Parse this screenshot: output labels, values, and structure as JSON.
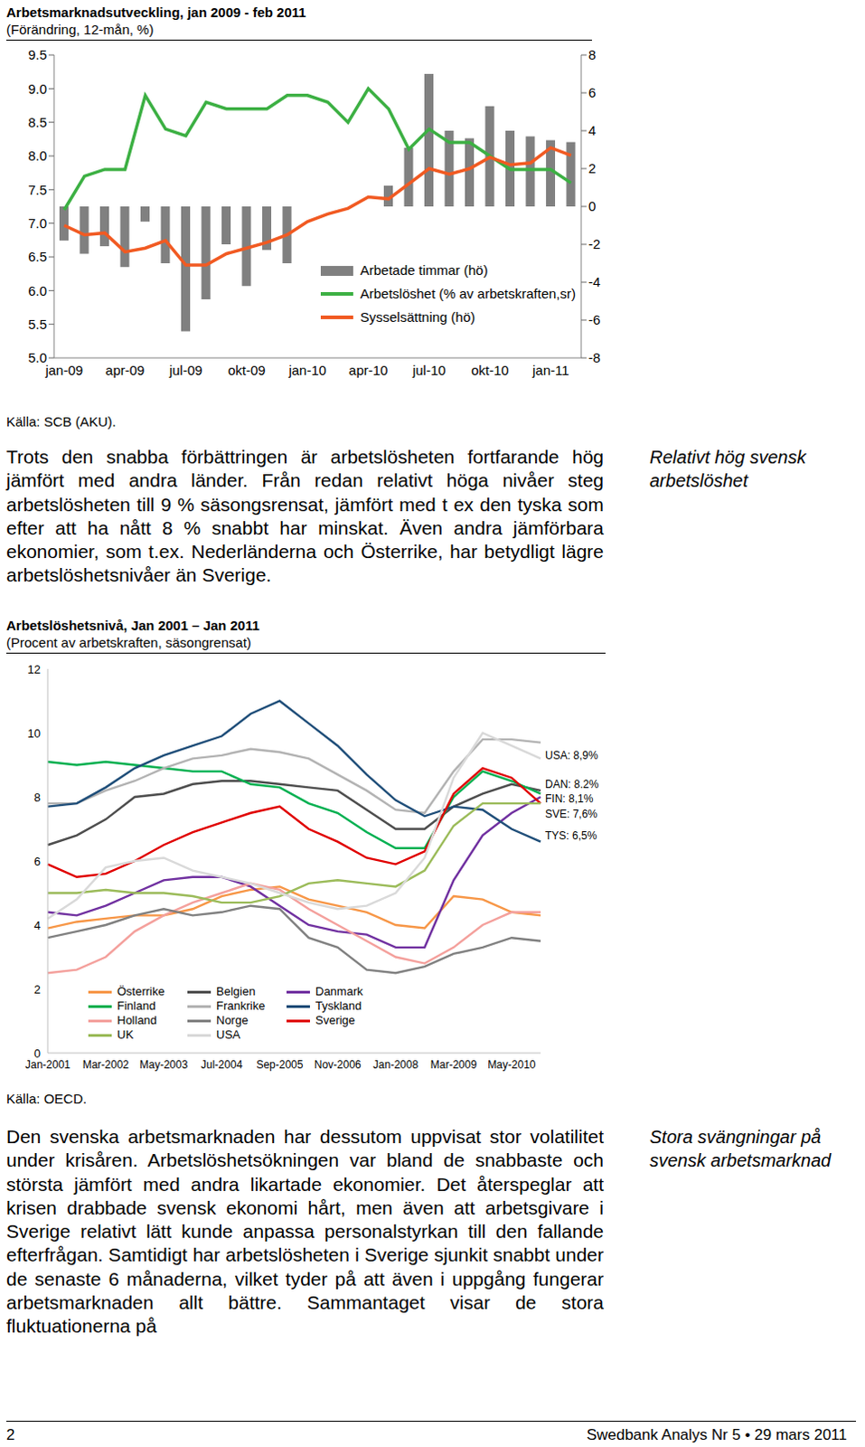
{
  "chart_data": [
    {
      "type": "bar",
      "title": "Arbetsmarknadsutveckling, jan 2009 - feb 2011",
      "subtitle": "(Förändring, 12-mån, %)",
      "source": "Källa: SCB (AKU).",
      "categories": [
        "jan-09",
        null,
        null,
        "apr-09",
        null,
        null,
        "jul-09",
        null,
        null,
        "okt-09",
        null,
        null,
        "jan-10",
        null,
        null,
        "apr-10",
        null,
        null,
        "jul-10",
        null,
        null,
        "okt-10",
        null,
        null,
        "jan-11",
        null
      ],
      "series": [
        {
          "name": "Arbetade timmar (hö)",
          "type": "bar",
          "axis": "y2",
          "color": "#808080",
          "values": [
            -1.8,
            -2.5,
            -2.1,
            -3.2,
            -0.8,
            -3.0,
            -6.6,
            -4.9,
            -2.0,
            -4.2,
            -2.3,
            -3.0,
            null,
            null,
            null,
            null,
            1.1,
            3.1,
            7.0,
            4.0,
            3.6,
            5.3,
            4.0,
            3.7,
            3.5,
            3.4
          ]
        },
        {
          "name": "Arbetslöshet (% av arbetskraften,sr)",
          "type": "line",
          "color": "#3cb043",
          "values": [
            7.2,
            7.7,
            7.8,
            7.8,
            8.9,
            8.4,
            8.3,
            8.8,
            8.7,
            8.7,
            8.7,
            8.9,
            8.9,
            8.8,
            8.5,
            9.0,
            8.7,
            8.1,
            8.4,
            8.2,
            8.2,
            8.0,
            7.8,
            7.8,
            7.8,
            7.6
          ]
        },
        {
          "name": "Sysselsättning (hö)",
          "type": "line",
          "axis": "y2",
          "color": "#f15a22",
          "values": [
            -1.0,
            -1.5,
            -1.4,
            -2.4,
            -2.2,
            -1.8,
            -3.1,
            -3.1,
            -2.5,
            -2.2,
            -1.9,
            -1.5,
            -0.8,
            -0.4,
            -0.1,
            0.5,
            0.4,
            1.2,
            2.0,
            1.7,
            2.0,
            2.6,
            2.2,
            2.3,
            3.1,
            2.7
          ]
        }
      ],
      "ylim": [
        5,
        9.5
      ],
      "yticks": [
        {
          "value": 5,
          "label": "5.0"
        },
        5.5,
        {
          "value": 6,
          "label": "6.0"
        },
        6.5,
        {
          "value": 7,
          "label": "7.0"
        },
        7.5,
        {
          "value": 8,
          "label": "8.0"
        },
        8.5,
        {
          "value": 9,
          "label": "9.0"
        },
        9.5
      ],
      "y2lim": [
        -8,
        8
      ],
      "y2ticks": [
        -8,
        -6,
        -4,
        -2,
        0,
        2,
        4,
        6,
        8
      ],
      "grid": false,
      "legend": "lower right"
    },
    {
      "type": "line",
      "title": "Arbetslöshetsnivå, Jan 2001 – Jan 2011",
      "subtitle": "(Procent av arbetskraften, säsongrensat)",
      "source": "Källa: OECD.",
      "categories": [
        "Jan-2001",
        null,
        "Mar-2002",
        null,
        "May-2003",
        null,
        "Jul-2004",
        null,
        "Sep-2005",
        null,
        "Nov-2006",
        null,
        "Jan-2008",
        null,
        "Mar-2009",
        null,
        "May-2010",
        null
      ],
      "series": [
        {
          "name": "Österrike",
          "color": "#f79646",
          "values": [
            3.9,
            4.1,
            4.2,
            4.3,
            4.3,
            4.5,
            4.9,
            5.1,
            5.2,
            4.8,
            4.6,
            4.4,
            4.0,
            3.9,
            4.9,
            4.8,
            4.4,
            4.3
          ]
        },
        {
          "name": "Belgien",
          "color": "#4d4d4d",
          "values": [
            6.5,
            6.8,
            7.3,
            8.0,
            8.1,
            8.4,
            8.5,
            8.5,
            8.4,
            8.3,
            8.2,
            7.6,
            7.0,
            7.0,
            7.7,
            8.1,
            8.4,
            8.2
          ]
        },
        {
          "name": "Danmark",
          "color": "#7030a0",
          "values": [
            4.4,
            4.3,
            4.6,
            5.0,
            5.4,
            5.5,
            5.5,
            5.2,
            4.6,
            4.0,
            3.8,
            3.7,
            3.3,
            3.3,
            5.4,
            6.8,
            7.5,
            8.0
          ]
        },
        {
          "name": "Finland",
          "color": "#00b050",
          "values": [
            9.1,
            9.0,
            9.1,
            9.0,
            8.9,
            8.8,
            8.8,
            8.4,
            8.3,
            7.8,
            7.5,
            6.9,
            6.4,
            6.4,
            8.0,
            8.8,
            8.5,
            8.1
          ]
        },
        {
          "name": "Frankrike",
          "color": "#b3b3b3",
          "values": [
            7.8,
            7.8,
            8.2,
            8.5,
            8.9,
            9.2,
            9.3,
            9.5,
            9.4,
            9.2,
            8.7,
            8.2,
            7.6,
            7.5,
            8.8,
            9.8,
            9.8,
            9.7
          ]
        },
        {
          "name": "Tyskland",
          "color": "#1f4e79",
          "values": [
            7.7,
            7.8,
            8.3,
            8.9,
            9.3,
            9.6,
            9.9,
            10.6,
            11.0,
            10.3,
            9.6,
            8.7,
            7.9,
            7.4,
            7.7,
            7.6,
            7.0,
            6.6
          ]
        },
        {
          "name": "Holland",
          "color": "#f4a09c",
          "values": [
            2.5,
            2.6,
            3.0,
            3.8,
            4.3,
            4.7,
            5.0,
            5.3,
            5.1,
            4.5,
            4.0,
            3.5,
            3.0,
            2.8,
            3.3,
            4.0,
            4.4,
            4.4
          ]
        },
        {
          "name": "Norge",
          "color": "#808080",
          "values": [
            3.6,
            3.8,
            4.0,
            4.3,
            4.5,
            4.3,
            4.4,
            4.6,
            4.5,
            3.6,
            3.3,
            2.6,
            2.5,
            2.7,
            3.1,
            3.3,
            3.6,
            3.5
          ]
        },
        {
          "name": "Sverige",
          "color": "#e00000",
          "values": [
            5.9,
            5.5,
            5.6,
            6.0,
            6.5,
            6.9,
            7.2,
            7.5,
            7.7,
            7.0,
            6.6,
            6.1,
            5.9,
            6.3,
            8.1,
            8.9,
            8.6,
            7.8
          ]
        },
        {
          "name": "UK",
          "color": "#9bbb59",
          "values": [
            5.0,
            5.0,
            5.1,
            5.0,
            5.0,
            4.9,
            4.7,
            4.7,
            4.9,
            5.3,
            5.4,
            5.3,
            5.2,
            5.7,
            7.1,
            7.8,
            7.8,
            7.8
          ]
        },
        {
          "name": "USA",
          "color": "#d9d9d9",
          "values": [
            4.2,
            4.8,
            5.8,
            6.0,
            6.1,
            5.7,
            5.5,
            5.3,
            5.0,
            4.7,
            4.5,
            4.6,
            5.0,
            6.1,
            8.6,
            10.0,
            9.6,
            9.2
          ]
        }
      ],
      "ylim": [
        0,
        12
      ],
      "yticks": [
        0,
        2,
        4,
        6,
        8,
        10,
        12
      ],
      "grid": false,
      "legend": "lower left",
      "annotations": [
        "USA: 8,9%",
        "DAN: 8.2%",
        "FIN: 8,1%",
        "SVE: 7,6%",
        "TYS: 6,5%"
      ]
    }
  ],
  "document": {
    "paragraphs": [
      {
        "text": "Trots den snabba förbättringen är arbetslösheten fortfarande hög jämfört med andra länder. Från redan relativt höga nivåer steg arbetslösheten till 9 % säsongsrensat, jämfört med t ex den tyska som efter att ha nått 8 % snabbt har minskat. Även andra jämförbara ekonomier, som t.ex. Nederländerna och Österrike, har betydligt lägre arbetslöshetsnivåer än Sverige.",
        "side_note": "Relativt hög svensk arbetslöshet"
      },
      {
        "text": "Den svenska arbetsmarknaden har dessutom uppvisat stor volatilitet under krisåren. Arbetslöshetsökningen var bland de snabbaste och största jämfört med andra likartade ekonomier. Det återspeglar att krisen drabbade svensk ekonomi hårt, men även att arbetsgivare i Sverige relativt lätt kunde anpassa personalstyrkan till den fallande efterfrågan. Samtidigt har arbetslösheten i Sverige sjunkit snabbt under de senaste 6 månaderna, vilket tyder på att även i uppgång fungerar arbetsmarknaden allt bättre. Sammantaget visar de stora fluktuationerna på",
        "side_note": "Stora svängningar på svensk arbetsmarknad"
      }
    ],
    "footer": {
      "page": "2",
      "text": "Swedbank Analys Nr 5 • 29 mars 2011"
    }
  }
}
